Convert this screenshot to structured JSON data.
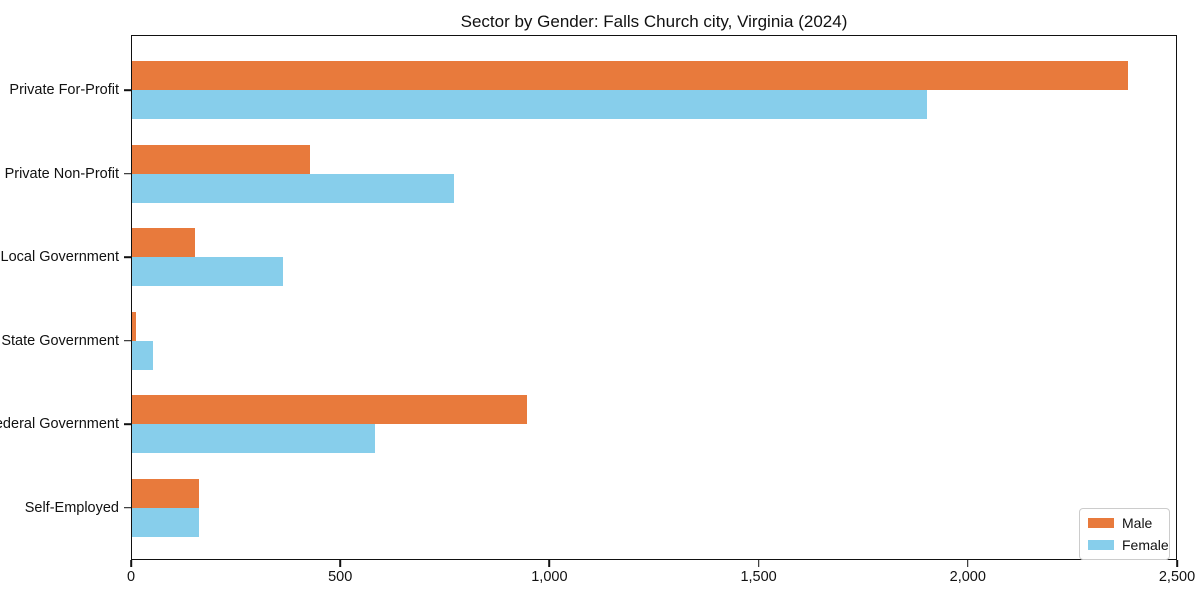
{
  "chart_data": {
    "type": "bar",
    "orientation": "horizontal",
    "title": "Sector by Gender: Falls Church city, Virginia (2024)",
    "categories": [
      "Private For-Profit",
      "Private Non-Profit",
      "Local Government",
      "State Government",
      "Federal Government",
      "Self-Employed"
    ],
    "series": [
      {
        "name": "Male",
        "color": "#e87a3c",
        "values": [
          2380,
          425,
          150,
          10,
          945,
          160
        ]
      },
      {
        "name": "Female",
        "color": "#87ceeb",
        "values": [
          1900,
          770,
          360,
          50,
          580,
          160
        ]
      }
    ],
    "xlabel": "",
    "ylabel": "",
    "xlim": [
      0,
      2500
    ],
    "xticks": {
      "values": [
        0,
        500,
        1000,
        1500,
        2000,
        2500
      ],
      "labels": [
        "0",
        "500",
        "1,000",
        "1,500",
        "2,000",
        "2,500"
      ]
    },
    "grid": false,
    "legend": {
      "position": "lower right",
      "entries": [
        "Male",
        "Female"
      ]
    }
  },
  "colors": {
    "background": "#ffffff",
    "spine": "#111111",
    "text": "#111111",
    "male": "#e87a3c",
    "female": "#87ceeb",
    "legend_border": "#cccccc"
  }
}
